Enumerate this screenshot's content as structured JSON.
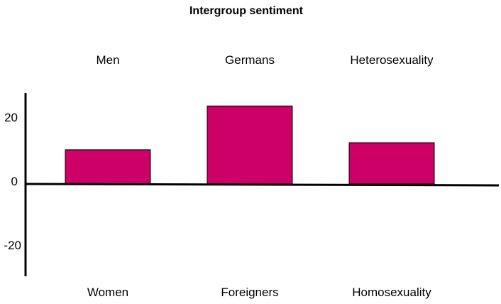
{
  "chart_data": {
    "type": "bar",
    "title": "Intergroup sentiment",
    "categories_top": [
      "Men",
      "Germans",
      "Heterosexuality"
    ],
    "categories_bottom": [
      "Women",
      "Foreigners",
      "Homosexuality"
    ],
    "values": [
      10.7,
      24.4,
      12.9
    ],
    "ylim": [
      -29,
      29
    ],
    "yticks": [
      20,
      0,
      -20
    ],
    "bar_color": "#cc0066",
    "axis_color": "#000000",
    "xlabel": "",
    "ylabel": ""
  }
}
